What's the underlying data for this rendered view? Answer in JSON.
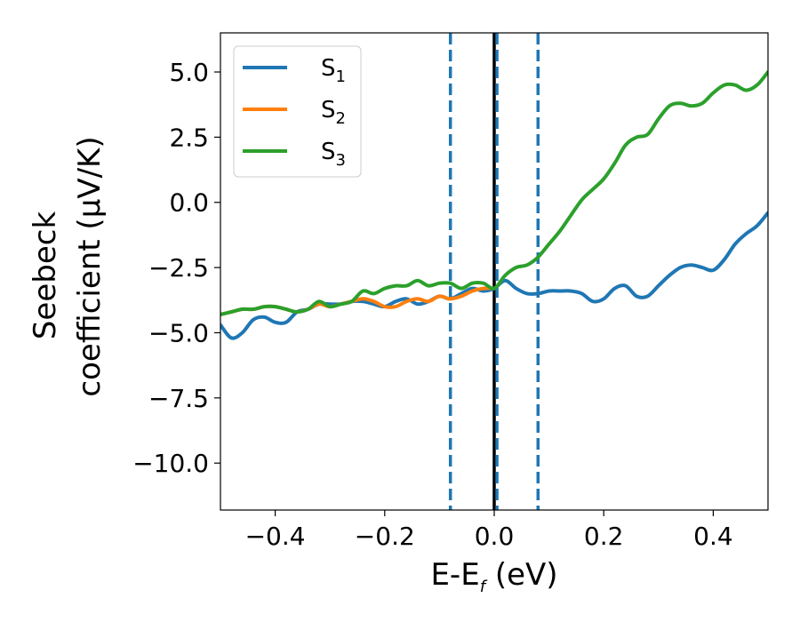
{
  "chart_data": {
    "type": "line",
    "xlabel": "E-E",
    "xlabel_sub": "f",
    "xlabel_unit": " (eV)",
    "ylabel_line1": "Seebeck",
    "ylabel_line2": "coefficient  (μV/K)",
    "xlim": [
      -0.5,
      0.5
    ],
    "ylim": [
      -11.8,
      6.5
    ],
    "xticks": [
      -0.4,
      -0.2,
      0.0,
      0.2,
      0.4
    ],
    "xtick_labels": [
      "−0.4",
      "−0.2",
      "0.0",
      "0.2",
      "0.4"
    ],
    "yticks": [
      5.0,
      2.5,
      0.0,
      -2.5,
      -5.0,
      -7.5,
      -10.0
    ],
    "ytick_labels": [
      "5.0",
      "2.5",
      "0.0",
      "−2.5",
      "−5.0",
      "−7.5",
      "−10.0"
    ],
    "grid": false,
    "legend_position": "top-left",
    "series": [
      {
        "name": "S",
        "name_sub": "1",
        "color": "#1f77b4",
        "x": [
          -0.5,
          -0.48,
          -0.46,
          -0.44,
          -0.42,
          -0.4,
          -0.38,
          -0.36,
          -0.34,
          -0.32,
          -0.3,
          -0.28,
          -0.26,
          -0.24,
          -0.22,
          -0.2,
          -0.18,
          -0.16,
          -0.14,
          -0.12,
          -0.1,
          -0.08,
          -0.06,
          -0.04,
          -0.02,
          0.0,
          0.02,
          0.04,
          0.06,
          0.08,
          0.1,
          0.12,
          0.14,
          0.16,
          0.18,
          0.2,
          0.22,
          0.24,
          0.26,
          0.28,
          0.3,
          0.32,
          0.34,
          0.36,
          0.38,
          0.4,
          0.42,
          0.44,
          0.46,
          0.48,
          0.5
        ],
        "y": [
          -4.7,
          -5.2,
          -5.0,
          -4.5,
          -4.4,
          -4.6,
          -4.6,
          -4.2,
          -4.1,
          -3.9,
          -3.9,
          -3.9,
          -3.8,
          -3.8,
          -3.9,
          -4.0,
          -3.8,
          -3.7,
          -3.9,
          -3.8,
          -3.6,
          -3.7,
          -3.5,
          -3.3,
          -3.4,
          -3.3,
          -3.0,
          -3.3,
          -3.5,
          -3.5,
          -3.4,
          -3.4,
          -3.4,
          -3.5,
          -3.8,
          -3.7,
          -3.3,
          -3.2,
          -3.6,
          -3.6,
          -3.2,
          -2.8,
          -2.5,
          -2.4,
          -2.5,
          -2.6,
          -2.2,
          -1.6,
          -1.2,
          -0.9,
          -0.4
        ]
      },
      {
        "name": "S",
        "name_sub": "2",
        "color": "#ff7f0e",
        "x": [
          -0.5,
          -0.48,
          -0.46,
          -0.44,
          -0.42,
          -0.4,
          -0.38,
          -0.36,
          -0.34,
          -0.32,
          -0.3,
          -0.28,
          -0.26,
          -0.24,
          -0.22,
          -0.2,
          -0.18,
          -0.16,
          -0.14,
          -0.12,
          -0.1,
          -0.08,
          -0.06,
          -0.04,
          -0.02,
          0.0
        ],
        "y": [
          -4.3,
          -4.2,
          -4.1,
          -4.1,
          -4.0,
          -4.0,
          -4.1,
          -4.2,
          -4.1,
          -3.9,
          -4.0,
          -3.9,
          -3.8,
          -3.7,
          -3.8,
          -4.0,
          -4.0,
          -3.8,
          -3.7,
          -3.8,
          -3.6,
          -3.7,
          -3.6,
          -3.4,
          -3.3,
          -3.3
        ]
      },
      {
        "name": "S",
        "name_sub": "3",
        "color": "#2ca02c",
        "x": [
          -0.5,
          -0.48,
          -0.46,
          -0.44,
          -0.42,
          -0.4,
          -0.38,
          -0.36,
          -0.34,
          -0.32,
          -0.3,
          -0.28,
          -0.26,
          -0.24,
          -0.22,
          -0.2,
          -0.18,
          -0.16,
          -0.14,
          -0.12,
          -0.1,
          -0.08,
          -0.06,
          -0.04,
          -0.02,
          0.0,
          0.02,
          0.04,
          0.06,
          0.08,
          0.1,
          0.12,
          0.14,
          0.16,
          0.18,
          0.2,
          0.22,
          0.24,
          0.26,
          0.28,
          0.3,
          0.32,
          0.34,
          0.36,
          0.38,
          0.4,
          0.42,
          0.44,
          0.46,
          0.48,
          0.5
        ],
        "y": [
          -4.3,
          -4.2,
          -4.1,
          -4.1,
          -4.0,
          -4.0,
          -4.1,
          -4.2,
          -4.1,
          -3.8,
          -4.0,
          -3.9,
          -3.8,
          -3.4,
          -3.5,
          -3.3,
          -3.2,
          -3.2,
          -3.0,
          -3.2,
          -3.1,
          -3.1,
          -3.3,
          -3.1,
          -3.1,
          -3.3,
          -2.8,
          -2.5,
          -2.4,
          -2.1,
          -1.6,
          -1.1,
          -0.5,
          0.1,
          0.5,
          0.9,
          1.5,
          2.2,
          2.5,
          2.6,
          3.2,
          3.7,
          3.8,
          3.7,
          3.8,
          4.2,
          4.5,
          4.5,
          4.3,
          4.5,
          5.0
        ]
      }
    ],
    "vertical_lines": [
      {
        "x": 0.0,
        "color": "#000000",
        "style": "solid"
      },
      {
        "x": -0.08,
        "color": "#1f77b4",
        "style": "dashed"
      },
      {
        "x": 0.005,
        "color": "#1f77b4",
        "style": "dashed"
      },
      {
        "x": 0.08,
        "color": "#1f77b4",
        "style": "dashed"
      }
    ]
  }
}
